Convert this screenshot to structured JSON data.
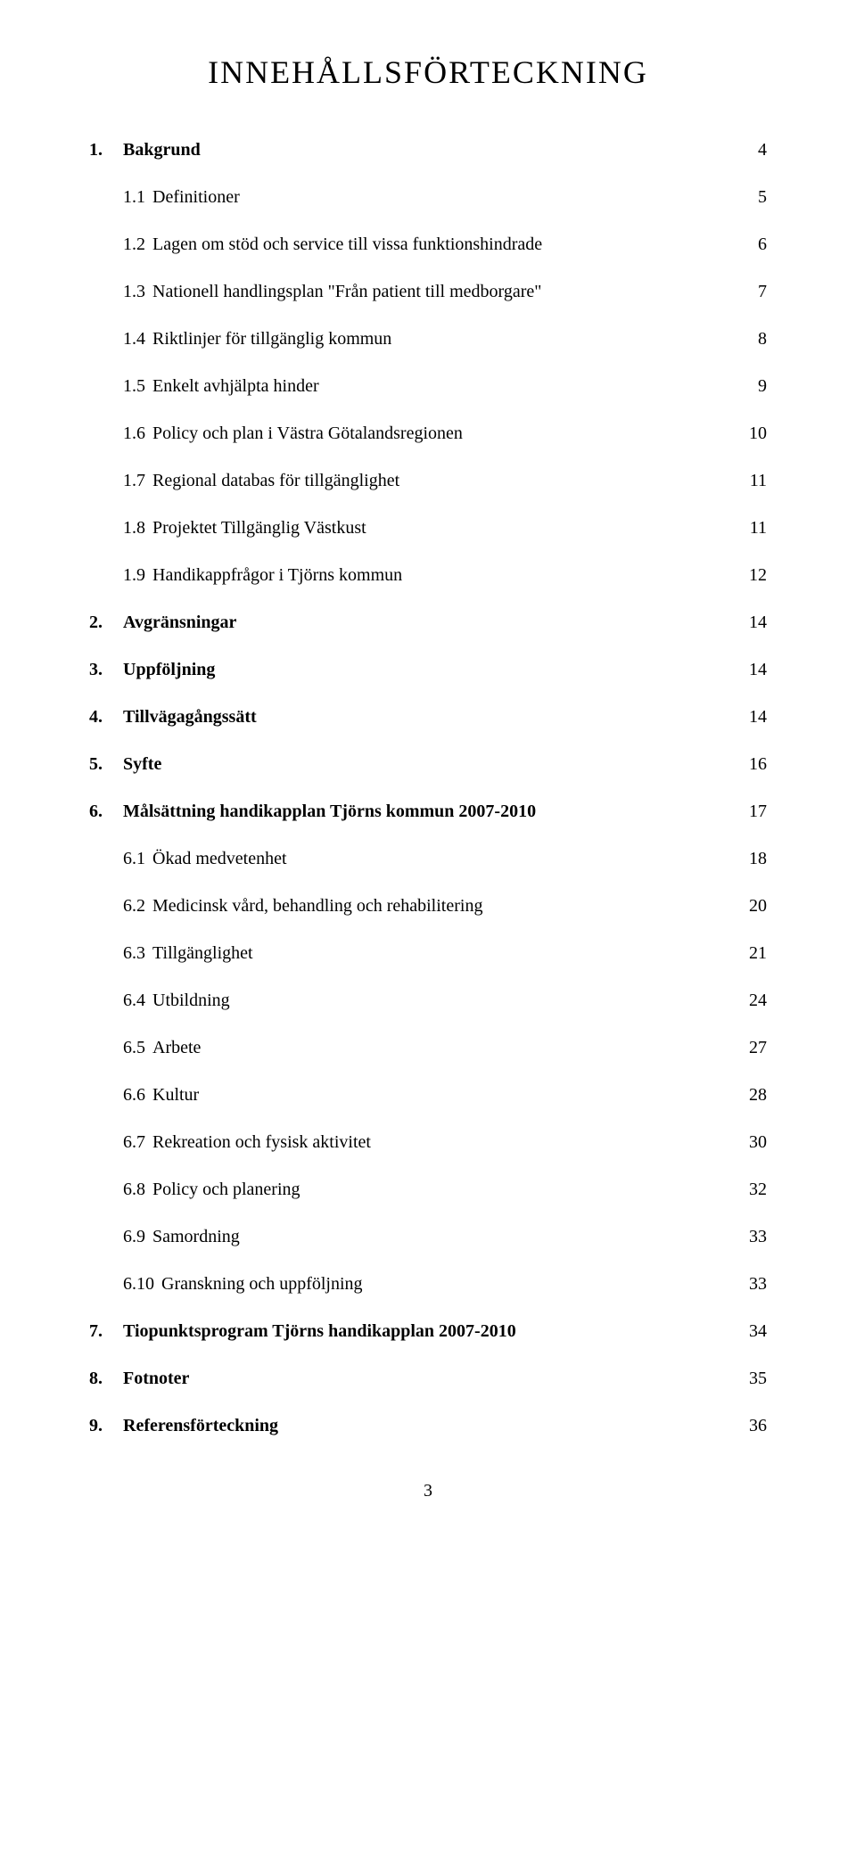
{
  "title": "INNEHÅLLSFÖRTECKNING",
  "page_number": "3",
  "toc": [
    {
      "level": 1,
      "num": "1.",
      "text": "Bakgrund",
      "page": "4"
    },
    {
      "level": 2,
      "num": "1.1",
      "text": "Definitioner",
      "page": "5"
    },
    {
      "level": 2,
      "num": "1.2",
      "text": "Lagen om stöd och service till vissa funktionshindrade",
      "page": "6"
    },
    {
      "level": 2,
      "num": "1.3",
      "text": "Nationell handlingsplan \"Från patient till medborgare\"",
      "page": "7"
    },
    {
      "level": 2,
      "num": "1.4",
      "text": "Riktlinjer för tillgänglig kommun",
      "page": "8"
    },
    {
      "level": 2,
      "num": "1.5",
      "text": "Enkelt avhjälpta hinder",
      "page": "9"
    },
    {
      "level": 2,
      "num": "1.6",
      "text": "Policy och plan i Västra Götalandsregionen",
      "page": "10"
    },
    {
      "level": 2,
      "num": "1.7",
      "text": "Regional databas för tillgänglighet",
      "page": "11"
    },
    {
      "level": 2,
      "num": "1.8",
      "text": "Projektet Tillgänglig Västkust",
      "page": "11"
    },
    {
      "level": 2,
      "num": "1.9",
      "text": "Handikappfrågor i Tjörns kommun",
      "page": "12"
    },
    {
      "level": 1,
      "num": "2.",
      "text": "Avgränsningar",
      "page": "14"
    },
    {
      "level": 1,
      "num": "3.",
      "text": "Uppföljning",
      "page": "14"
    },
    {
      "level": 1,
      "num": "4.",
      "text": "Tillvägagångssätt",
      "page": "14"
    },
    {
      "level": 1,
      "num": "5.",
      "text": "Syfte",
      "page": "16"
    },
    {
      "level": 1,
      "num": "6.",
      "text": "Målsättning handikapplan Tjörns kommun 2007-2010",
      "page": "17"
    },
    {
      "level": 2,
      "num": "6.1",
      "text": "Ökad medvetenhet",
      "page": "18"
    },
    {
      "level": 2,
      "num": "6.2",
      "text": "Medicinsk vård, behandling och rehabilitering",
      "page": "20"
    },
    {
      "level": 2,
      "num": "6.3",
      "text": "Tillgänglighet",
      "page": "21"
    },
    {
      "level": 2,
      "num": "6.4",
      "text": "Utbildning",
      "page": "24"
    },
    {
      "level": 2,
      "num": "6.5",
      "text": "Arbete",
      "page": "27"
    },
    {
      "level": 2,
      "num": "6.6",
      "text": "Kultur",
      "page": "28"
    },
    {
      "level": 2,
      "num": "6.7",
      "text": "Rekreation och fysisk aktivitet",
      "page": "30"
    },
    {
      "level": 2,
      "num": "6.8",
      "text": "Policy och planering",
      "page": "32"
    },
    {
      "level": 2,
      "num": "6.9",
      "text": "Samordning",
      "page": "33"
    },
    {
      "level": 2,
      "num": "6.10",
      "text": "Granskning och uppföljning",
      "page": "33"
    },
    {
      "level": 1,
      "num": "7.",
      "text": "Tiopunktsprogram Tjörns handikapplan 2007-2010",
      "page": "34"
    },
    {
      "level": 1,
      "num": "8.",
      "text": "Fotnoter",
      "page": "35"
    },
    {
      "level": 1,
      "num": "9.",
      "text": "Referensförteckning",
      "page": "36"
    }
  ]
}
